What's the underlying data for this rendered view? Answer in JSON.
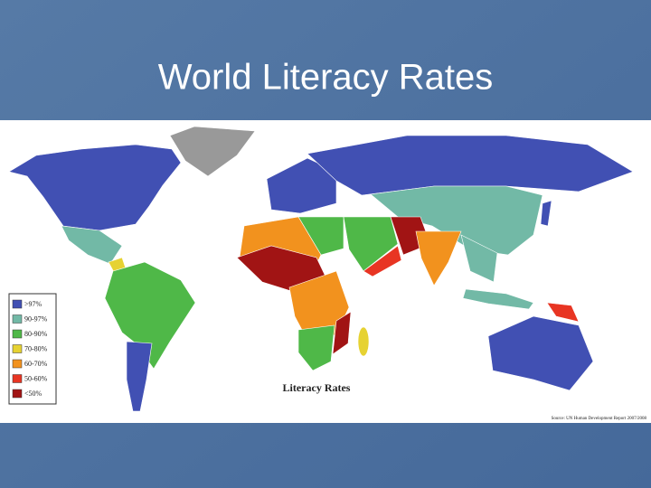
{
  "title": "World Literacy Rates",
  "map": {
    "title": "Literacy Rates",
    "source": "Source: UN Human Development Report 2007/2008",
    "legend": [
      {
        "label": ">97%",
        "color": "#4150b3"
      },
      {
        "label": "90-97%",
        "color": "#72b9a6"
      },
      {
        "label": "80-90%",
        "color": "#4fb848"
      },
      {
        "label": "70-80%",
        "color": "#e6d232"
      },
      {
        "label": "60-70%",
        "color": "#f2921e"
      },
      {
        "label": "50-60%",
        "color": "#e83523"
      },
      {
        "label": "<50%",
        "color": "#a11414"
      }
    ]
  }
}
